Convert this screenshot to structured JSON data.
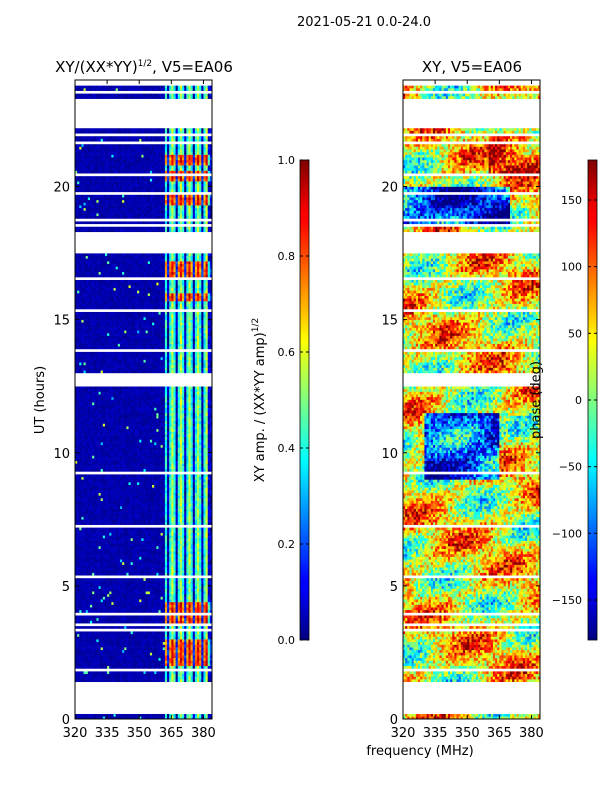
{
  "figure_title": "2021-05-21 0.0-24.0",
  "shared_xlabel": "frequency (MHz)",
  "colors": {
    "masked": "#ffffff",
    "frame": "#000000"
  },
  "chart_data": [
    {
      "type": "heatmap",
      "title_prefix": "XY/(XX*YY)",
      "title_exponent": "1/2",
      "title_suffix": ", V5=EA06",
      "xlabel": "frequency (MHz)",
      "ylabel": "UT (hours)",
      "xlim": [
        320,
        384
      ],
      "ylim": [
        0,
        24
      ],
      "xticks": [
        320,
        335,
        350,
        365,
        380
      ],
      "yticks": [
        0,
        5,
        10,
        15,
        20
      ],
      "colormap": "jet",
      "colorbar": {
        "label_main": "XY amp. / (XX*YY amp)",
        "label_exponent": "1/2",
        "vmin": 0.0,
        "vmax": 1.0,
        "ticks": [
          "0.0",
          "0.2",
          "0.4",
          "0.6",
          "0.8",
          "1.0"
        ]
      },
      "structure": "low amplitude (~0) below 362 MHz; moderate 0.3-0.6 values 362-382 MHz with vertical channel stripes; peaks ~0.8 near 2.5h, 4h, 16h, 17h, 19-21h"
    },
    {
      "type": "heatmap",
      "title": "XY, V5=EA06",
      "xlabel": "frequency (MHz)",
      "ylabel": "",
      "xlim": [
        320,
        384
      ],
      "ylim": [
        0,
        24
      ],
      "xticks": [
        320,
        335,
        350,
        365,
        380
      ],
      "yticks": [
        0,
        5,
        10,
        15,
        20
      ],
      "colormap": "jet",
      "colorbar": {
        "label": "phase (deg)",
        "vmin": -180,
        "vmax": 180,
        "ticks": [
          "−150",
          "−100",
          "−50",
          "0",
          "50",
          "100",
          "150"
        ]
      },
      "structure": "noisy phase across band, mostly 0-100 deg with blue (-100 to -150 deg) patches around 10h and 19h"
    }
  ],
  "masked_rows_hours": [
    [
      0.08,
      0.12
    ],
    [
      0.2,
      1.4
    ],
    [
      1.5,
      1.52
    ],
    [
      1.6,
      1.62
    ],
    [
      1.85,
      1.9
    ],
    [
      2.0,
      2.05
    ],
    [
      3.3,
      3.4
    ],
    [
      3.55,
      3.6
    ],
    [
      3.95,
      4.0
    ],
    [
      4.5,
      4.55
    ],
    [
      5.3,
      5.45
    ],
    [
      5.6,
      5.65
    ],
    [
      6.4,
      6.45
    ],
    [
      6.6,
      6.65
    ],
    [
      7.25,
      7.3
    ],
    [
      8.4,
      8.45
    ],
    [
      8.6,
      8.65
    ],
    [
      9.25,
      9.3
    ],
    [
      10.3,
      10.35
    ],
    [
      11.1,
      11.15
    ],
    [
      11.5,
      11.55
    ],
    [
      11.7,
      11.75
    ],
    [
      12.0,
      12.05
    ],
    [
      12.4,
      12.45
    ],
    [
      12.5,
      13.0
    ],
    [
      13.2,
      13.25
    ],
    [
      13.5,
      13.55
    ],
    [
      13.85,
      13.9
    ],
    [
      14.4,
      14.45
    ],
    [
      14.7,
      14.75
    ],
    [
      15.1,
      15.15
    ],
    [
      15.35,
      15.4
    ],
    [
      15.5,
      15.55
    ],
    [
      16.0,
      16.05
    ],
    [
      16.3,
      16.35
    ],
    [
      16.55,
      16.6
    ],
    [
      16.7,
      16.75
    ],
    [
      17.5,
      18.3
    ],
    [
      18.55,
      18.6
    ],
    [
      18.75,
      18.8
    ],
    [
      19.3,
      19.35
    ],
    [
      19.75,
      19.8
    ],
    [
      20.45,
      20.5
    ],
    [
      20.7,
      20.75
    ],
    [
      21.2,
      21.25
    ],
    [
      21.65,
      21.7
    ],
    [
      21.9,
      22.0
    ],
    [
      22.25,
      23.3
    ],
    [
      23.55,
      23.6
    ],
    [
      23.85,
      24.0
    ]
  ]
}
